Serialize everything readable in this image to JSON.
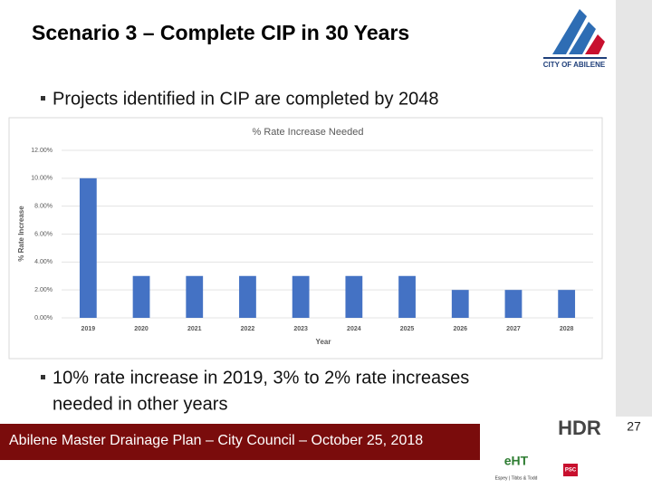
{
  "slide": {
    "title": "Scenario 3 – Complete CIP in 30 Years",
    "bullets": [
      "Projects identified in CIP are completed by 2048",
      "10% rate increase in 2019, 3% to 2% rate increases",
      "needed in other years"
    ],
    "logo": "CITY OF ABILENE",
    "footer": "Abilene Master Drainage Plan – City Council – October 25, 2018",
    "page_number": "27",
    "partner_logos": [
      "HDR",
      "eHT",
      "Espey | Tibbs & Todd",
      "PSC"
    ]
  },
  "chart_data": {
    "type": "bar",
    "title": "% Rate Increase Needed",
    "x_label": "Year",
    "y_label": "% Rate Increase",
    "categories": [
      "2019",
      "2020",
      "2021",
      "2022",
      "2023",
      "2024",
      "2025",
      "2026",
      "2027",
      "2028"
    ],
    "values": [
      10,
      3,
      3,
      3,
      3,
      3,
      3,
      2,
      2,
      2
    ],
    "color": "#4472c4",
    "ylim": [
      0,
      12
    ],
    "yticks": [
      {
        "value": 0,
        "label": "0.00%"
      },
      {
        "value": 2,
        "label": "2.00%"
      },
      {
        "value": 4,
        "label": "4.00%"
      },
      {
        "value": 6,
        "label": "6.00%"
      },
      {
        "value": 8,
        "label": "8.00%"
      },
      {
        "value": 10,
        "label": "10.00%"
      },
      {
        "value": 12,
        "label": "12.00%"
      }
    ],
    "grid": true
  }
}
